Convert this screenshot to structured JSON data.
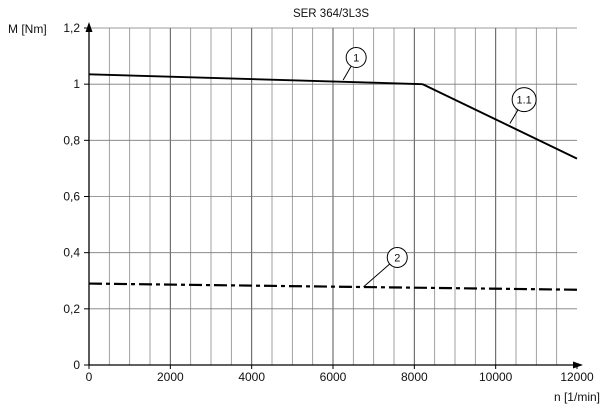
{
  "chart_data": {
    "type": "line",
    "title": "SER 364/3L3S",
    "xlabel": "n [1/min]",
    "ylabel": "M [Nm]",
    "xlim": [
      0,
      12000
    ],
    "ylim": [
      0,
      1.2
    ],
    "grid": true,
    "x_ticks": [
      0,
      2000,
      4000,
      6000,
      8000,
      10000,
      12000
    ],
    "x_tick_labels": [
      "0",
      "2000",
      "4000",
      "6000",
      "8000",
      "10000",
      "12000"
    ],
    "y_ticks": [
      0,
      0.2,
      0.4,
      0.6,
      0.8,
      1.0,
      1.2
    ],
    "y_tick_labels": [
      "0",
      "0,2",
      "0,4",
      "0,6",
      "0,8",
      "1",
      "1,2"
    ],
    "x_grid_step": 500,
    "series": [
      {
        "label": "1",
        "style": "solid",
        "x": [
          0,
          8200
        ],
        "y": [
          1.035,
          1.0
        ]
      },
      {
        "label": "1.1",
        "style": "solid",
        "x": [
          8200,
          12000
        ],
        "y": [
          1.0,
          0.735
        ]
      },
      {
        "label": "2",
        "style": "dash-dot",
        "x": [
          0,
          12000
        ],
        "y": [
          0.29,
          0.268
        ]
      }
    ],
    "callouts": [
      {
        "text": "1",
        "circle_at": [
          6570,
          1.095
        ],
        "leader_to": [
          6250,
          1.015
        ]
      },
      {
        "text": "1.1",
        "circle_at": [
          10700,
          0.945
        ],
        "leader_to": [
          10350,
          0.86
        ]
      },
      {
        "text": "2",
        "circle_at": [
          7580,
          0.383
        ],
        "leader_to": [
          6750,
          0.278
        ]
      }
    ]
  }
}
